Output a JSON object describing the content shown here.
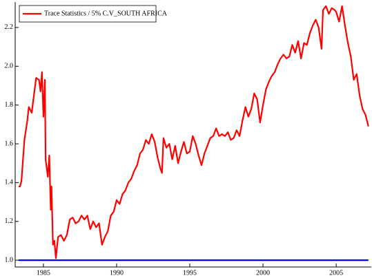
{
  "chart_data": {
    "type": "line",
    "xlim": [
      1983.07,
      2007.4
    ],
    "ylim": [
      0.965,
      2.331
    ],
    "xticks": [
      1985,
      1990,
      1995,
      2000,
      2005
    ],
    "yticks": [
      {
        "value": 1.0,
        "label": "1.0"
      },
      {
        "value": 1.2,
        "label": "1.2"
      },
      {
        "value": 1.4,
        "label": "1.4"
      },
      {
        "value": 1.6,
        "label": "1.6"
      },
      {
        "value": 1.8,
        "label": "1.8"
      },
      {
        "value": 2.0,
        "label": "2.0"
      },
      {
        "value": 2.2,
        "label": "2.2"
      }
    ],
    "grid": false,
    "legend": "top-left",
    "series": [
      {
        "name": "Trace Statistics / 5% C.V_SOUTH AFRICA",
        "color": "#ff0000",
        "x": [
          1983.3,
          1983.4,
          1983.5,
          1983.7,
          1983.9,
          1984.0,
          1984.2,
          1984.4,
          1984.5,
          1984.7,
          1984.8,
          1984.9,
          1985.0,
          1985.1,
          1985.15,
          1985.3,
          1985.4,
          1985.5,
          1985.55,
          1985.65,
          1985.75,
          1985.85,
          1986.0,
          1986.2,
          1986.4,
          1986.6,
          1986.8,
          1987.0,
          1987.2,
          1987.4,
          1987.6,
          1987.8,
          1988.0,
          1988.2,
          1988.4,
          1988.6,
          1988.8,
          1989.0,
          1989.2,
          1989.4,
          1989.6,
          1989.8,
          1990.0,
          1990.2,
          1990.4,
          1990.6,
          1990.8,
          1991.0,
          1991.2,
          1991.4,
          1991.6,
          1991.8,
          1992.0,
          1992.2,
          1992.4,
          1992.6,
          1992.8,
          1993.0,
          1993.1,
          1993.2,
          1993.4,
          1993.6,
          1993.8,
          1994.0,
          1994.2,
          1994.4,
          1994.6,
          1994.8,
          1995.0,
          1995.2,
          1995.4,
          1995.6,
          1995.8,
          1996.0,
          1996.2,
          1996.4,
          1996.6,
          1996.8,
          1997.0,
          1997.2,
          1997.4,
          1997.6,
          1997.8,
          1998.0,
          1998.2,
          1998.4,
          1998.6,
          1998.8,
          1999.0,
          1999.2,
          1999.4,
          1999.6,
          1999.8,
          2000.0,
          2000.2,
          2000.4,
          2000.6,
          2000.8,
          2001.0,
          2001.2,
          2001.4,
          2001.6,
          2001.8,
          2002.0,
          2002.2,
          2002.4,
          2002.6,
          2002.8,
          2003.0,
          2003.2,
          2003.4,
          2003.6,
          2003.8,
          2004.0,
          2004.1,
          2004.3,
          2004.5,
          2004.7,
          2004.9,
          2005.0,
          2005.2,
          2005.4,
          2005.6,
          2005.8,
          2006.0,
          2006.2,
          2006.4,
          2006.6,
          2006.8,
          2007.0,
          2007.2
        ],
        "values": [
          1.38,
          1.38,
          1.41,
          1.62,
          1.72,
          1.79,
          1.76,
          1.88,
          1.94,
          1.93,
          1.87,
          1.97,
          1.74,
          1.93,
          1.52,
          1.43,
          1.54,
          1.26,
          1.38,
          1.08,
          1.1,
          1.01,
          1.12,
          1.13,
          1.1,
          1.13,
          1.21,
          1.22,
          1.19,
          1.2,
          1.23,
          1.21,
          1.23,
          1.16,
          1.2,
          1.17,
          1.19,
          1.08,
          1.12,
          1.15,
          1.23,
          1.25,
          1.31,
          1.29,
          1.34,
          1.36,
          1.4,
          1.42,
          1.46,
          1.49,
          1.55,
          1.57,
          1.62,
          1.6,
          1.65,
          1.61,
          1.53,
          1.47,
          1.45,
          1.63,
          1.58,
          1.6,
          1.52,
          1.59,
          1.5,
          1.56,
          1.61,
          1.55,
          1.56,
          1.64,
          1.6,
          1.54,
          1.49,
          1.55,
          1.59,
          1.63,
          1.64,
          1.68,
          1.64,
          1.65,
          1.64,
          1.66,
          1.62,
          1.63,
          1.67,
          1.64,
          1.72,
          1.79,
          1.74,
          1.78,
          1.86,
          1.83,
          1.71,
          1.8,
          1.88,
          1.92,
          1.95,
          1.97,
          2.01,
          2.04,
          2.06,
          2.04,
          2.05,
          2.11,
          2.07,
          2.13,
          2.04,
          2.12,
          2.11,
          2.17,
          2.21,
          2.24,
          2.2,
          2.09,
          2.29,
          2.31,
          2.27,
          2.3,
          2.29,
          2.28,
          2.23,
          2.31,
          2.21,
          2.12,
          2.05,
          1.93,
          1.96,
          1.85,
          1.78,
          1.75,
          1.69
        ]
      },
      {
        "color": "#0000ff",
        "x": [
          1983.3,
          2007.2
        ],
        "values": [
          1.0,
          1.0
        ]
      }
    ]
  }
}
